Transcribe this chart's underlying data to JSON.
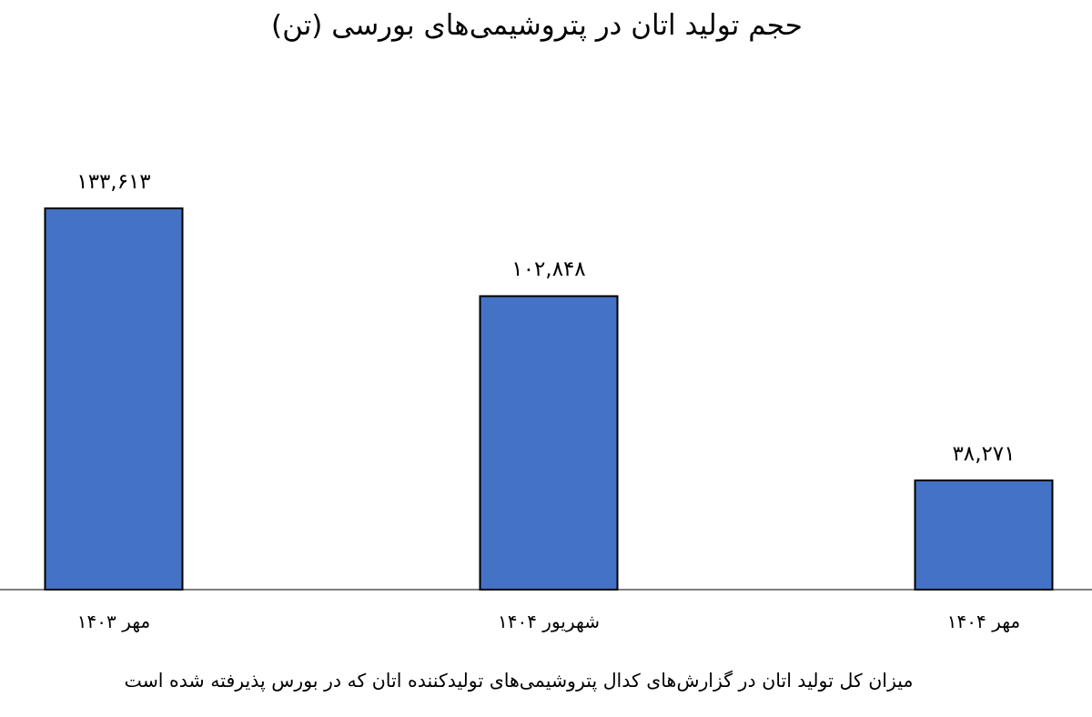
{
  "chart_data": {
    "type": "bar",
    "title": "حجم تولید اتان در پتروشیمی‌های بورسی (تن)",
    "categories": [
      "مهر ۱۴۰۳",
      "شهریور ۱۴۰۴",
      "مهر ۱۴۰۴"
    ],
    "values": [
      133613,
      102848,
      38271
    ],
    "value_labels": [
      "۱۳۳,۶۱۳",
      "۱۰۲,۸۴۸",
      "۳۸,۲۷۱"
    ],
    "color": "#4472c4",
    "annotations": [
      "میزان کل تولید اتان در گزارش‌های کدال پتروشیمی‌های تولیدکننده اتان که در بورس پذیرفته شده است"
    ]
  }
}
